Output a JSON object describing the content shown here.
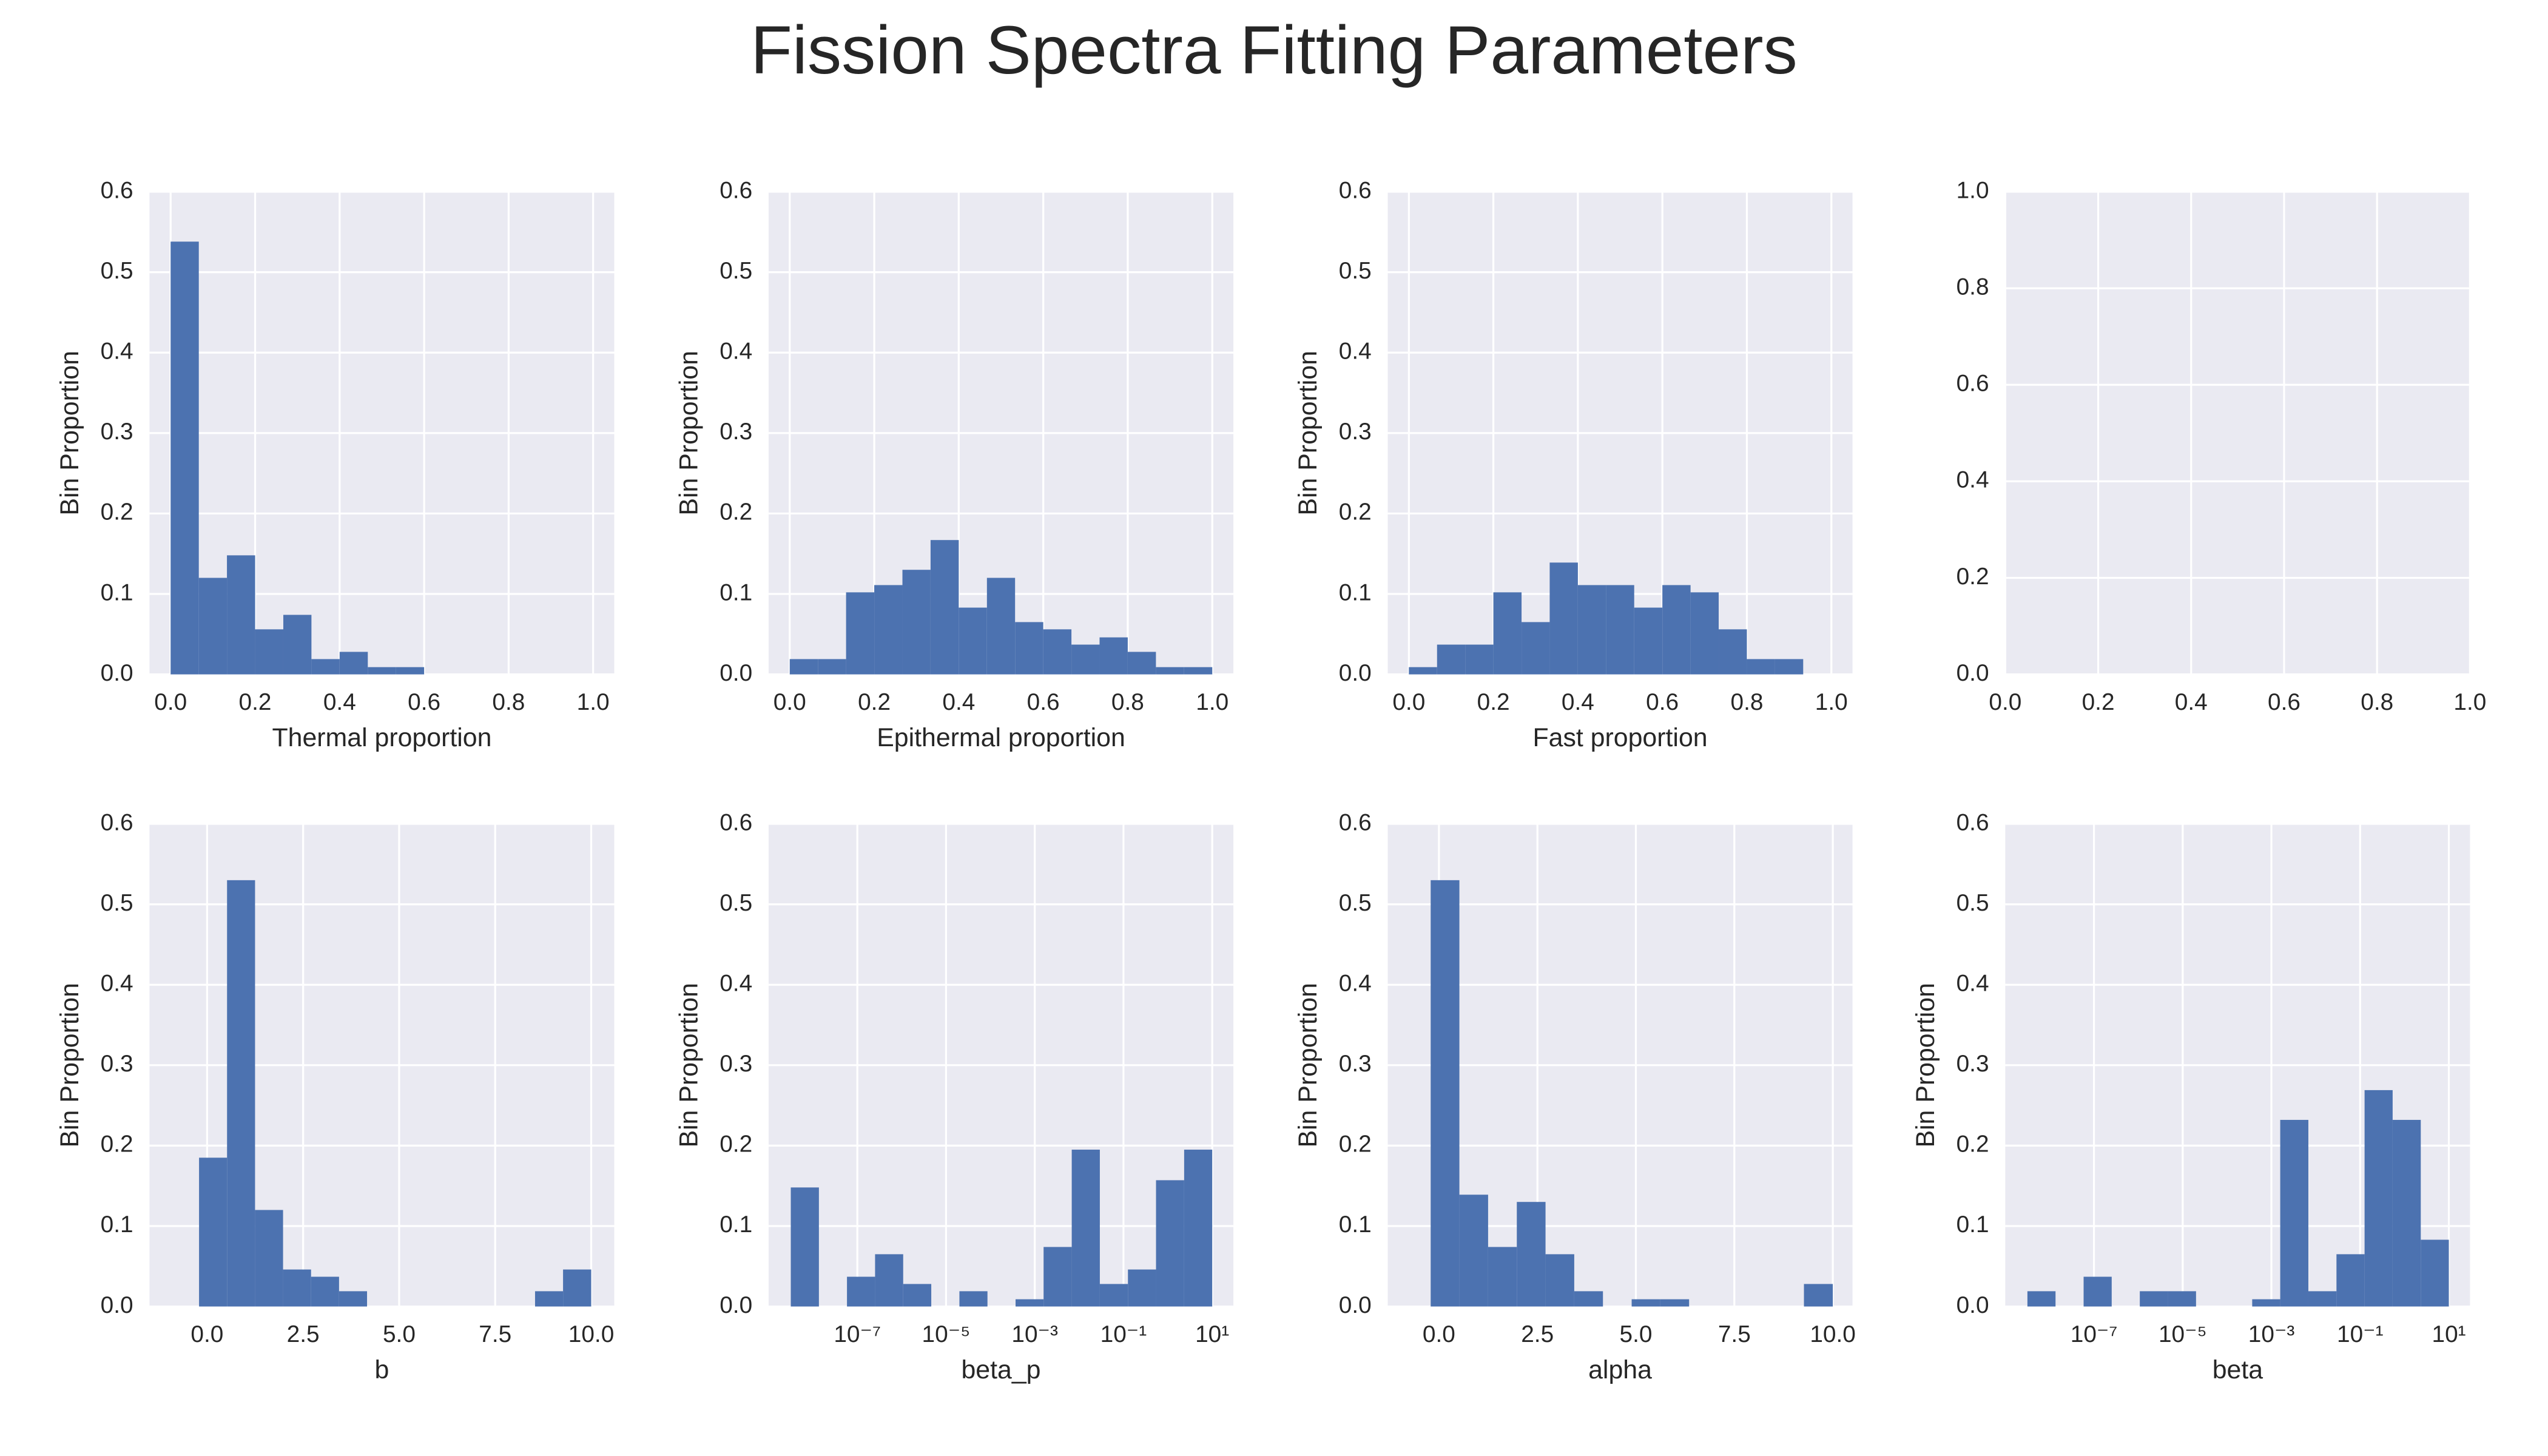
{
  "title": "Fission Spectra Fitting Parameters",
  "chart_data": [
    {
      "type": "histogram",
      "xlabel": "Thermal proportion",
      "ylabel": "Bin Proportion",
      "color": "#4c72b0",
      "grid": true,
      "bins": [
        0,
        0.0667,
        0.1333,
        0.2,
        0.2667,
        0.3333,
        0.4,
        0.4667,
        0.5333,
        0.6,
        0.6667,
        0.7333,
        0.8,
        0.8667,
        0.9333,
        1.0
      ],
      "values": [
        0.538,
        0.12,
        0.148,
        0.056,
        0.074,
        0.019,
        0.028,
        0.009,
        0.009,
        0,
        0,
        0,
        0,
        0,
        0
      ],
      "xlim": [
        -0.05,
        1.05
      ],
      "xticks": [
        {
          "value": 0,
          "label": "0.0"
        },
        {
          "value": 0.2,
          "label": "0.2"
        },
        {
          "value": 0.4,
          "label": "0.4"
        },
        {
          "value": 0.6,
          "label": "0.6"
        },
        {
          "value": 0.8,
          "label": "0.8"
        },
        {
          "value": 1,
          "label": "1.0"
        }
      ],
      "ylim": [
        0,
        0.6
      ],
      "yticks": [
        {
          "value": 0,
          "label": "0.0"
        },
        0.1,
        0.2,
        0.3,
        0.4,
        0.5,
        0.6
      ]
    },
    {
      "type": "histogram",
      "xlabel": "Epithermal proportion",
      "ylabel": "Bin Proportion",
      "color": "#4c72b0",
      "grid": true,
      "bins": [
        0,
        0.0667,
        0.1333,
        0.2,
        0.2667,
        0.3333,
        0.4,
        0.4667,
        0.5333,
        0.6,
        0.6667,
        0.7333,
        0.8,
        0.8667,
        0.9333,
        1.0
      ],
      "values": [
        0.019,
        0.019,
        0.102,
        0.111,
        0.13,
        0.167,
        0.083,
        0.12,
        0.065,
        0.056,
        0.037,
        0.046,
        0.028,
        0.009,
        0.009
      ],
      "xlim": [
        -0.05,
        1.05
      ],
      "xticks": [
        {
          "value": 0,
          "label": "0.0"
        },
        {
          "value": 0.2,
          "label": "0.2"
        },
        {
          "value": 0.4,
          "label": "0.4"
        },
        {
          "value": 0.6,
          "label": "0.6"
        },
        {
          "value": 0.8,
          "label": "0.8"
        },
        {
          "value": 1,
          "label": "1.0"
        }
      ],
      "ylim": [
        0,
        0.6
      ],
      "yticks": [
        {
          "value": 0,
          "label": "0.0"
        },
        0.1,
        0.2,
        0.3,
        0.4,
        0.5,
        0.6
      ]
    },
    {
      "type": "histogram",
      "xlabel": "Fast proportion",
      "ylabel": "Bin Proportion",
      "color": "#4c72b0",
      "grid": true,
      "bins": [
        0,
        0.0667,
        0.1333,
        0.2,
        0.2667,
        0.3333,
        0.4,
        0.4667,
        0.5333,
        0.6,
        0.6667,
        0.7333,
        0.8,
        0.8667,
        0.9333,
        1.0
      ],
      "values": [
        0.009,
        0.037,
        0.037,
        0.102,
        0.065,
        0.139,
        0.111,
        0.111,
        0.083,
        0.111,
        0.102,
        0.056,
        0.019,
        0.019,
        0
      ],
      "xlim": [
        -0.05,
        1.05
      ],
      "xticks": [
        {
          "value": 0,
          "label": "0.0"
        },
        {
          "value": 0.2,
          "label": "0.2"
        },
        {
          "value": 0.4,
          "label": "0.4"
        },
        {
          "value": 0.6,
          "label": "0.6"
        },
        {
          "value": 0.8,
          "label": "0.8"
        },
        {
          "value": 1,
          "label": "1.0"
        }
      ],
      "ylim": [
        0,
        0.6
      ],
      "yticks": [
        {
          "value": 0,
          "label": "0.0"
        },
        0.1,
        0.2,
        0.3,
        0.4,
        0.5,
        0.6
      ]
    },
    {
      "type": "histogram",
      "grid": true,
      "xlim": [
        0,
        1
      ],
      "xticks": [
        {
          "value": 0,
          "label": "0.0"
        },
        0.2,
        0.4,
        0.6,
        0.8,
        {
          "value": 1,
          "label": "1.0"
        }
      ],
      "ylim": [
        0,
        1
      ],
      "yticks": [
        {
          "value": 0,
          "label": "0.0"
        },
        0.2,
        0.4,
        0.6,
        0.8,
        {
          "value": 1,
          "label": "1.0"
        }
      ]
    },
    {
      "type": "histogram",
      "xlabel": "b",
      "ylabel": "Bin Proportion",
      "color": "#4c72b0",
      "grid": true,
      "bins": [
        -0.21,
        0.519,
        1.248,
        1.977,
        2.706,
        3.435,
        4.164,
        4.893,
        5.622,
        6.351,
        7.08,
        7.809,
        8.538,
        9.267,
        10.0
      ],
      "values": [
        0.185,
        0.53,
        0.12,
        0.046,
        0.037,
        0.019,
        0,
        0,
        0,
        0,
        0,
        0,
        0.019,
        0.046
      ],
      "xlim": [
        -1.5,
        10.6
      ],
      "xticks": [
        {
          "value": 0,
          "label": "0.0"
        },
        2.5,
        {
          "value": 5,
          "label": "5.0"
        },
        7.5,
        {
          "value": 10,
          "label": "10.0"
        }
      ],
      "ylim": [
        0,
        0.6
      ],
      "yticks": [
        {
          "value": 0,
          "label": "0.0"
        },
        0.1,
        0.2,
        0.3,
        0.4,
        0.5,
        0.6
      ]
    },
    {
      "type": "histogram",
      "xlabel": "beta_p",
      "ylabel": "Bin Proportion",
      "color": "#4c72b0",
      "grid": true,
      "xscale": "log",
      "bins": [
        3.16e-09,
        1.36e-08,
        5.84e-08,
        2.51e-07,
        1.08e-06,
        4.64e-06,
        2e-05,
        8.58e-05,
        0.000369,
        0.00158,
        0.00681,
        0.0293,
        0.126,
        0.541,
        2.33,
        10
      ],
      "values": [
        0.148,
        0,
        0.037,
        0.065,
        0.028,
        0,
        0.019,
        0,
        0.009,
        0.074,
        0.195,
        0.028,
        0.046,
        0.157,
        0.195
      ],
      "xlim": [
        1e-09,
        30
      ],
      "xticks": [
        {
          "value": 1e-07,
          "label": "10⁻⁷"
        },
        {
          "value": 1e-05,
          "label": "10⁻⁵"
        },
        {
          "value": 0.001,
          "label": "10⁻³"
        },
        {
          "value": 0.1,
          "label": "10⁻¹"
        },
        {
          "value": 10,
          "label": "10¹"
        }
      ],
      "ylim": [
        0,
        0.6
      ],
      "yticks": [
        {
          "value": 0,
          "label": "0.0"
        },
        0.1,
        0.2,
        0.3,
        0.4,
        0.5,
        0.6
      ]
    },
    {
      "type": "histogram",
      "xlabel": "alpha",
      "ylabel": "Bin Proportion",
      "color": "#4c72b0",
      "grid": true,
      "bins": [
        -0.21,
        0.519,
        1.248,
        1.977,
        2.706,
        3.435,
        4.164,
        4.893,
        5.622,
        6.351,
        7.08,
        7.809,
        8.538,
        9.267,
        10.0
      ],
      "values": [
        0.53,
        0.139,
        0.074,
        0.13,
        0.065,
        0.019,
        0,
        0.009,
        0.009,
        0,
        0,
        0,
        0,
        0.028
      ],
      "xlim": [
        -1.3,
        10.5
      ],
      "xticks": [
        {
          "value": 0,
          "label": "0.0"
        },
        2.5,
        {
          "value": 5,
          "label": "5.0"
        },
        7.5,
        {
          "value": 10,
          "label": "10.0"
        }
      ],
      "ylim": [
        0,
        0.6
      ],
      "yticks": [
        {
          "value": 0,
          "label": "0.0"
        },
        0.1,
        0.2,
        0.3,
        0.4,
        0.5,
        0.6
      ]
    },
    {
      "type": "histogram",
      "xlabel": "beta",
      "ylabel": "Bin Proportion",
      "color": "#4c72b0",
      "grid": true,
      "xscale": "log",
      "bins": [
        3.16e-09,
        1.36e-08,
        5.84e-08,
        2.51e-07,
        1.08e-06,
        4.64e-06,
        2e-05,
        8.58e-05,
        0.000369,
        0.00158,
        0.00681,
        0.0293,
        0.126,
        0.541,
        2.33,
        10
      ],
      "values": [
        0.019,
        0,
        0.037,
        0,
        0.019,
        0.019,
        0,
        0,
        0.009,
        0.232,
        0.019,
        0.065,
        0.269,
        0.232,
        0.083
      ],
      "xlim": [
        1e-09,
        30
      ],
      "xticks": [
        {
          "value": 1e-07,
          "label": "10⁻⁷"
        },
        {
          "value": 1e-05,
          "label": "10⁻⁵"
        },
        {
          "value": 0.001,
          "label": "10⁻³"
        },
        {
          "value": 0.1,
          "label": "10⁻¹"
        },
        {
          "value": 10,
          "label": "10¹"
        }
      ],
      "ylim": [
        0,
        0.6
      ],
      "yticks": [
        {
          "value": 0,
          "label": "0.0"
        },
        0.1,
        0.2,
        0.3,
        0.4,
        0.5,
        0.6
      ]
    }
  ]
}
